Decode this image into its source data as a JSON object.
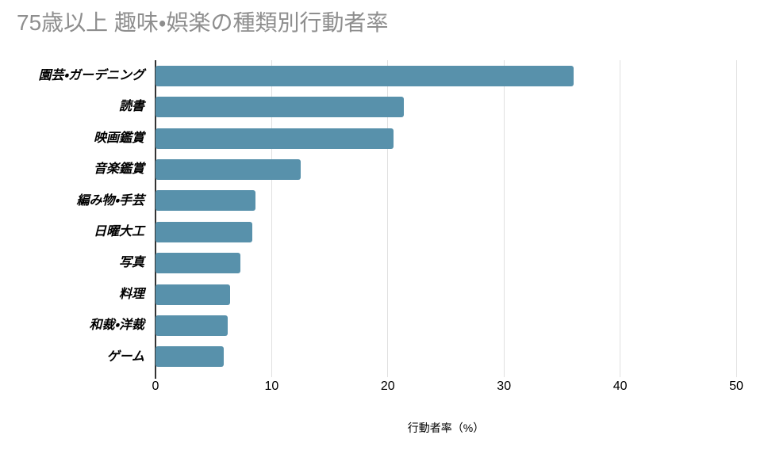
{
  "chart_data": {
    "type": "bar",
    "orientation": "horizontal",
    "title": "75歳以上 趣味・娯楽の種類別行動者率",
    "categories": [
      "園芸・ガーデニング",
      "読書",
      "映画鑑賞",
      "音楽鑑賞",
      "編み物・手芸",
      "日曜大工",
      "写真",
      "料理",
      "和裁・洋裁",
      "ゲーム"
    ],
    "values": [
      36.0,
      21.4,
      20.5,
      12.5,
      8.6,
      8.3,
      7.3,
      6.4,
      6.2,
      5.9
    ],
    "xlabel": "行動者率（%）",
    "ylabel": "",
    "xlim": [
      0,
      50
    ],
    "xticks": [
      0,
      10,
      20,
      30,
      40,
      50
    ],
    "grid": "vertical-light",
    "legend": "none",
    "bar_color": "#5891ab",
    "title_color": "#8e8e8e",
    "gridline_color": "#e0e0e0",
    "axis_line_color": "#333333"
  }
}
